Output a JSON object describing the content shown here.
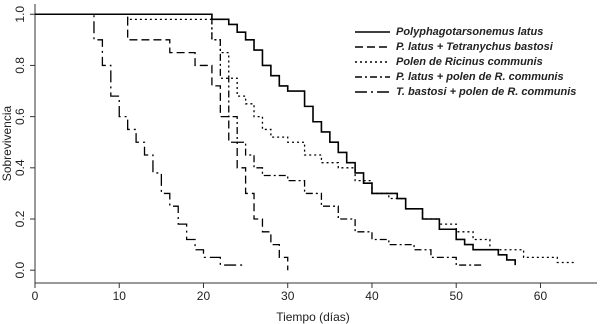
{
  "chart_data": {
    "type": "step",
    "xlabel": "Tiempo (días)",
    "ylabel": "Sobrevivencia",
    "xlim": [
      0,
      66
    ],
    "ylim": [
      -0.05,
      1.04
    ],
    "xticks": [
      0,
      10,
      20,
      30,
      40,
      50,
      60
    ],
    "yticks": [
      {
        "value": 0,
        "label": "0.0"
      },
      0.2,
      0.4,
      0.6,
      0.8,
      {
        "value": 1,
        "label": "1.0"
      }
    ],
    "series": [
      {
        "name": "Polyphagotarsonemus latus",
        "color": "#000000",
        "dash": "none",
        "x": [
          0,
          21,
          23,
          24,
          25,
          26,
          27,
          28,
          29,
          30,
          32,
          33,
          34,
          35,
          36,
          37,
          38,
          39,
          40,
          43,
          44,
          46,
          48,
          50,
          51,
          52,
          55,
          56,
          57
        ],
        "values": [
          1,
          0.98,
          0.96,
          0.93,
          0.9,
          0.86,
          0.8,
          0.76,
          0.72,
          0.7,
          0.64,
          0.58,
          0.54,
          0.5,
          0.46,
          0.42,
          0.38,
          0.34,
          0.3,
          0.28,
          0.24,
          0.2,
          0.16,
          0.12,
          0.1,
          0.08,
          0.06,
          0.04,
          0.02
        ]
      },
      {
        "name": "P. latus + Tetranychus bastosi",
        "color": "#000000",
        "dash": "8,4",
        "x": [
          0,
          11,
          16,
          19,
          21,
          22,
          23,
          24,
          25,
          26,
          27,
          28,
          29,
          30
        ],
        "values": [
          1,
          0.9,
          0.85,
          0.8,
          0.72,
          0.6,
          0.5,
          0.4,
          0.3,
          0.2,
          0.15,
          0.1,
          0.05,
          0
        ]
      },
      {
        "name": "Polen de Ricinus communis",
        "color": "#000000",
        "dash": "2,3",
        "x": [
          0,
          11,
          21,
          22,
          23,
          24,
          25,
          26,
          27,
          28,
          30,
          32,
          34,
          36,
          38,
          40,
          42,
          44,
          46,
          48,
          50,
          52,
          54,
          58,
          62,
          64
        ],
        "values": [
          1,
          0.98,
          0.9,
          0.85,
          0.75,
          0.68,
          0.65,
          0.6,
          0.55,
          0.52,
          0.5,
          0.45,
          0.42,
          0.4,
          0.35,
          0.3,
          0.28,
          0.24,
          0.2,
          0.18,
          0.15,
          0.12,
          0.08,
          0.05,
          0.03,
          0.02
        ]
      },
      {
        "name": "P. latus + polen de R. communis",
        "color": "#000000",
        "dash": "7,3,2,3",
        "x": [
          0,
          21,
          22,
          23,
          24,
          25,
          26,
          27,
          30,
          32,
          34,
          36,
          38,
          40,
          42,
          45,
          47,
          50,
          53
        ],
        "values": [
          1,
          0.9,
          0.75,
          0.6,
          0.5,
          0.45,
          0.4,
          0.37,
          0.35,
          0.3,
          0.25,
          0.2,
          0.15,
          0.12,
          0.1,
          0.08,
          0.05,
          0.02,
          0.02
        ]
      },
      {
        "name": "T. bastosi + polen de R. communis",
        "color": "#000000",
        "dash": "12,4,2,4",
        "x": [
          0,
          7,
          8,
          9,
          10,
          11,
          12,
          13,
          14,
          15,
          16,
          17,
          18,
          19,
          20,
          22,
          25
        ],
        "values": [
          1,
          0.9,
          0.8,
          0.68,
          0.6,
          0.55,
          0.5,
          0.45,
          0.38,
          0.3,
          0.25,
          0.18,
          0.12,
          0.08,
          0.05,
          0.02,
          0.02
        ]
      }
    ]
  }
}
